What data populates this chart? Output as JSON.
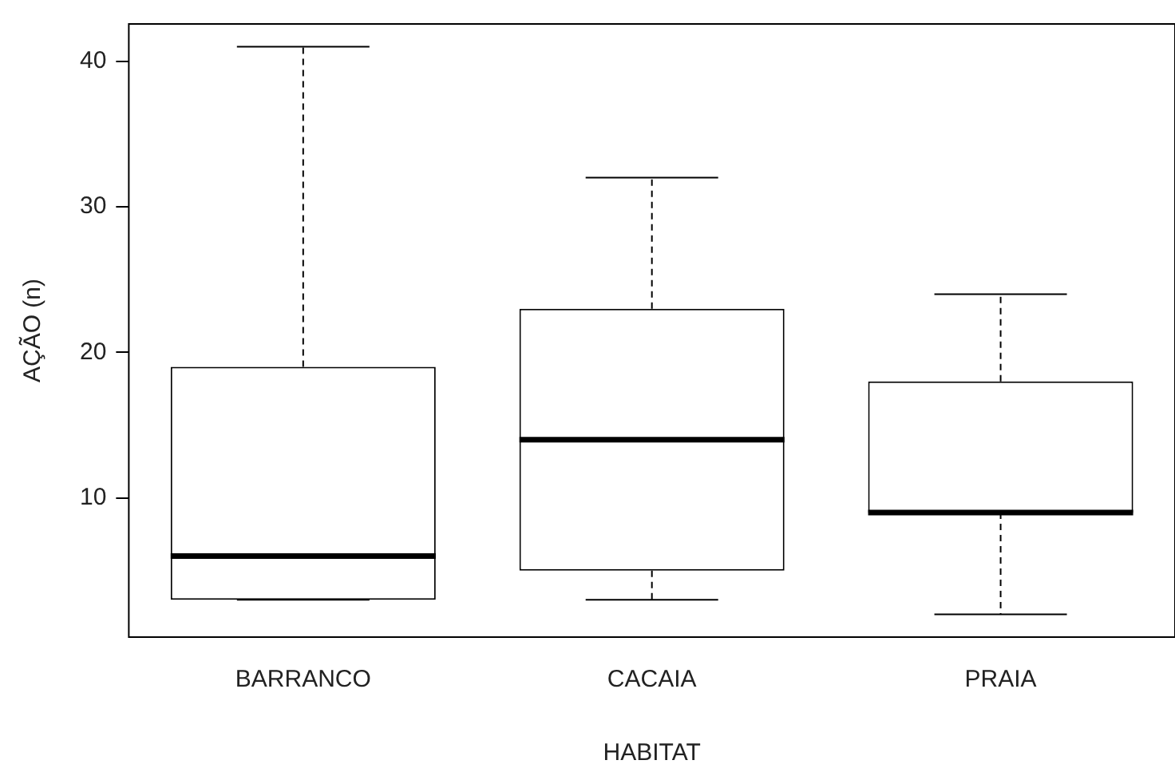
{
  "chart_data": {
    "type": "box",
    "xlabel": "HABITAT",
    "ylabel": "AÇÃO (n)",
    "categories": [
      "BARRANCO",
      "CACAIA",
      "PRAIA"
    ],
    "boxes": [
      {
        "low": 3,
        "q1": 3,
        "median": 6,
        "q3": 19,
        "high": 41
      },
      {
        "low": 3,
        "q1": 5,
        "median": 14,
        "q3": 23,
        "high": 32
      },
      {
        "low": 2,
        "q1": 9,
        "median": 9,
        "q3": 18,
        "high": 24
      }
    ],
    "ylim": [
      0.44,
      42.56
    ],
    "yticks": [
      10,
      20,
      30,
      40
    ],
    "grid": false
  }
}
